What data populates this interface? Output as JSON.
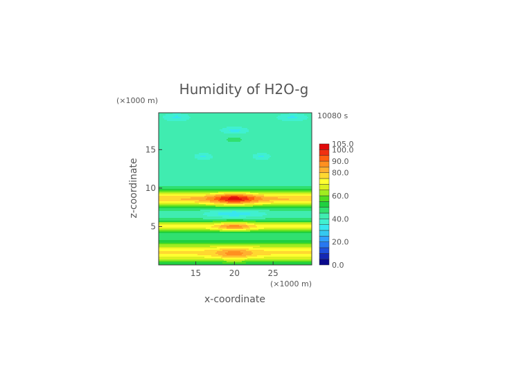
{
  "chart_data": {
    "type": "heatmap",
    "title": "Humidity of H2O-g",
    "xlabel": "x-coordinate",
    "ylabel": "z-coordinate",
    "x_unit": "(×1000 m)",
    "y_unit": "(×1000 m)",
    "time_label": "10080 s",
    "xlim": [
      10.2,
      30
    ],
    "ylim": [
      0,
      19.8
    ],
    "x_ticks": [
      15,
      20,
      25
    ],
    "y_ticks": [
      5,
      10,
      15
    ],
    "colorbar": {
      "levels": [
        0,
        5,
        10,
        15,
        20,
        25,
        30,
        35,
        40,
        45,
        50,
        55,
        60,
        65,
        70,
        75,
        80,
        85,
        90,
        95,
        100,
        105
      ],
      "labels": [
        "0.0",
        "20.0",
        "40.0",
        "60.0",
        "80.0",
        "90.0",
        "100.0",
        "105.0"
      ],
      "label_values": [
        0,
        20,
        40,
        60,
        80,
        90,
        100,
        105
      ]
    },
    "colors": [
      "#0a0a8c",
      "#1428b4",
      "#1e50dc",
      "#2878f0",
      "#30a0ff",
      "#34c8f0",
      "#38e6f0",
      "#40f0d0",
      "#40ecb0",
      "#30e070",
      "#20d040",
      "#50dc20",
      "#a0ec20",
      "#dcf020",
      "#ffff30",
      "#ffd830",
      "#ffb030",
      "#ff9020",
      "#ff6010",
      "#f03010",
      "#e00a0a",
      "#ffffff"
    ]
  }
}
